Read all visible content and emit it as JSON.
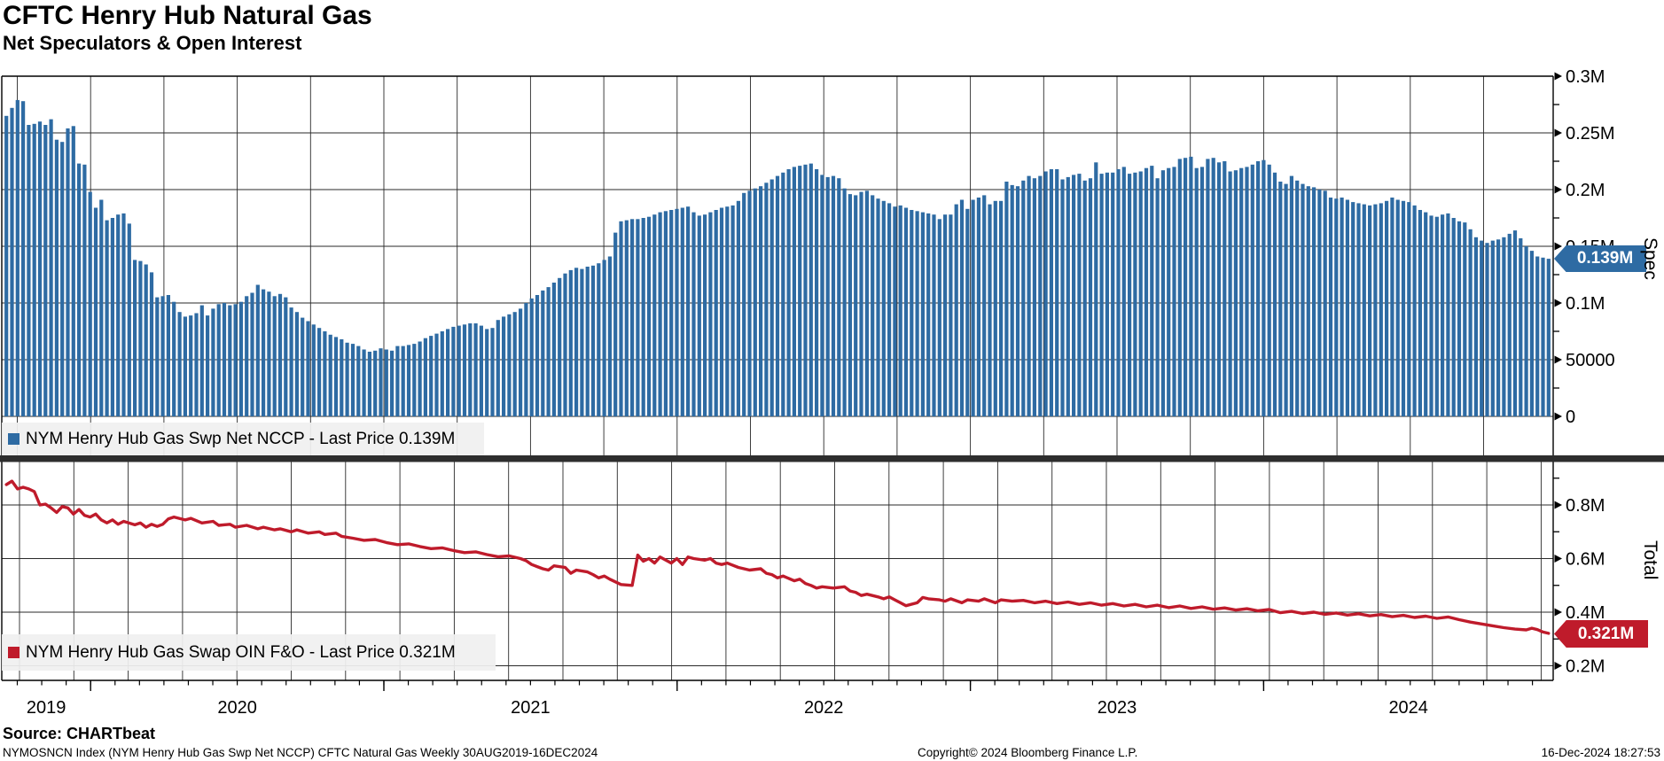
{
  "header": {
    "title": "CFTC Henry Hub Natural Gas",
    "subtitle": "Net Speculators & Open Interest"
  },
  "footer": {
    "source": "Source: CHARTbeat",
    "index_line": "NYMOSNCN Index (NYM Henry Hub Gas Swp Net NCCP) CFTC Natural Gas  Weekly 30AUG2019-16DEC2024",
    "copyright": "Copyright© 2024 Bloomberg Finance L.P.",
    "datetime": "16-Dec-2024 18:27:53"
  },
  "colors": {
    "bar_blue": "#2e6ba3",
    "line_red": "#bf1b2b",
    "grid": "#2a2a2a",
    "axis": "#000000",
    "separator": "#2e2e2e",
    "legend_bg": "#f0f0f0",
    "tag_text": "#ffffff"
  },
  "chart_data": [
    {
      "type": "bar",
      "panel": "top",
      "name": "NYM Henry Hub Gas Swp Net NCCP",
      "legend": "NYM Henry Hub Gas Swp Net NCCP - Last Price 0.139M",
      "last_price": "0.139M",
      "axis_title": "Spec",
      "frequency": "Weekly",
      "date_range": "30AUG2019-16DEC2024",
      "unit": "contracts (M = million)",
      "ylim": [
        0,
        0.3
      ],
      "yticks": [
        {
          "label": "0",
          "v": 0
        },
        {
          "label": "50000",
          "v": 0.05
        },
        {
          "label": "0.1M",
          "v": 0.1
        },
        {
          "label": "0.15M",
          "v": 0.15
        },
        {
          "label": "0.2M",
          "v": 0.2
        },
        {
          "label": "0.25M",
          "v": 0.25
        },
        {
          "label": "0.3M",
          "v": 0.3
        }
      ],
      "values": [
        0.265,
        0.272,
        0.279,
        0.278,
        0.257,
        0.258,
        0.26,
        0.257,
        0.262,
        0.244,
        0.242,
        0.254,
        0.256,
        0.223,
        0.222,
        0.198,
        0.184,
        0.191,
        0.173,
        0.175,
        0.178,
        0.179,
        0.17,
        0.138,
        0.137,
        0.134,
        0.127,
        0.105,
        0.106,
        0.107,
        0.101,
        0.092,
        0.088,
        0.089,
        0.091,
        0.098,
        0.089,
        0.095,
        0.099,
        0.1,
        0.098,
        0.099,
        0.101,
        0.106,
        0.109,
        0.116,
        0.112,
        0.11,
        0.106,
        0.108,
        0.105,
        0.096,
        0.092,
        0.087,
        0.084,
        0.081,
        0.078,
        0.075,
        0.072,
        0.07,
        0.068,
        0.065,
        0.064,
        0.062,
        0.059,
        0.057,
        0.058,
        0.06,
        0.059,
        0.058,
        0.062,
        0.062,
        0.063,
        0.064,
        0.066,
        0.069,
        0.071,
        0.073,
        0.075,
        0.077,
        0.079,
        0.08,
        0.081,
        0.082,
        0.082,
        0.08,
        0.077,
        0.078,
        0.085,
        0.088,
        0.09,
        0.092,
        0.095,
        0.1,
        0.104,
        0.107,
        0.111,
        0.114,
        0.118,
        0.122,
        0.126,
        0.129,
        0.131,
        0.13,
        0.132,
        0.133,
        0.135,
        0.138,
        0.141,
        0.162,
        0.172,
        0.173,
        0.174,
        0.174,
        0.175,
        0.176,
        0.178,
        0.18,
        0.181,
        0.182,
        0.183,
        0.184,
        0.185,
        0.18,
        0.177,
        0.178,
        0.18,
        0.182,
        0.184,
        0.185,
        0.186,
        0.19,
        0.197,
        0.199,
        0.201,
        0.203,
        0.206,
        0.209,
        0.212,
        0.215,
        0.218,
        0.22,
        0.221,
        0.222,
        0.223,
        0.218,
        0.213,
        0.211,
        0.212,
        0.21,
        0.201,
        0.196,
        0.195,
        0.198,
        0.199,
        0.195,
        0.192,
        0.19,
        0.188,
        0.185,
        0.186,
        0.184,
        0.182,
        0.181,
        0.18,
        0.179,
        0.178,
        0.174,
        0.178,
        0.178,
        0.187,
        0.191,
        0.183,
        0.191,
        0.193,
        0.195,
        0.187,
        0.19,
        0.19,
        0.207,
        0.204,
        0.203,
        0.208,
        0.212,
        0.21,
        0.212,
        0.216,
        0.218,
        0.218,
        0.209,
        0.211,
        0.213,
        0.214,
        0.208,
        0.21,
        0.224,
        0.214,
        0.215,
        0.215,
        0.218,
        0.22,
        0.214,
        0.215,
        0.216,
        0.219,
        0.221,
        0.21,
        0.217,
        0.219,
        0.22,
        0.227,
        0.228,
        0.229,
        0.219,
        0.22,
        0.227,
        0.228,
        0.224,
        0.225,
        0.216,
        0.217,
        0.219,
        0.22,
        0.222,
        0.225,
        0.226,
        0.222,
        0.215,
        0.207,
        0.205,
        0.212,
        0.208,
        0.205,
        0.203,
        0.202,
        0.2,
        0.199,
        0.193,
        0.192,
        0.193,
        0.191,
        0.189,
        0.188,
        0.187,
        0.186,
        0.187,
        0.188,
        0.19,
        0.193,
        0.191,
        0.19,
        0.189,
        0.186,
        0.182,
        0.18,
        0.177,
        0.176,
        0.178,
        0.179,
        0.175,
        0.172,
        0.171,
        0.165,
        0.158,
        0.155,
        0.153,
        0.155,
        0.156,
        0.158,
        0.161,
        0.164,
        0.157,
        0.15,
        0.146,
        0.141,
        0.14,
        0.139
      ]
    },
    {
      "type": "line",
      "panel": "bottom",
      "name": "NYM Henry Hub Gas Swap OIN F&O",
      "legend": "NYM Henry Hub Gas Swap OIN F&O - Last Price 0.321M",
      "last_price": "0.321M",
      "axis_title": "Total",
      "frequency": "Weekly",
      "date_range": "30AUG2019-16DEC2024",
      "unit": "contracts (M = million)",
      "ylim": [
        0.15,
        0.96
      ],
      "yticks": [
        {
          "label": "0.2M",
          "v": 0.2
        },
        {
          "label": "0.4M",
          "v": 0.4
        },
        {
          "label": "0.6M",
          "v": 0.6
        },
        {
          "label": "0.8M",
          "v": 0.8
        }
      ],
      "points": [
        [
          0,
          0.876
        ],
        [
          1,
          0.889
        ],
        [
          2,
          0.86
        ],
        [
          3,
          0.866
        ],
        [
          4,
          0.86
        ],
        [
          5,
          0.85
        ],
        [
          6,
          0.8
        ],
        [
          7,
          0.803
        ],
        [
          8,
          0.789
        ],
        [
          9,
          0.772
        ],
        [
          10,
          0.794
        ],
        [
          11,
          0.789
        ],
        [
          12,
          0.766
        ],
        [
          13,
          0.783
        ],
        [
          14,
          0.761
        ],
        [
          15,
          0.755
        ],
        [
          16,
          0.766
        ],
        [
          17,
          0.744
        ],
        [
          18,
          0.733
        ],
        [
          19,
          0.744
        ],
        [
          20,
          0.728
        ],
        [
          21,
          0.739
        ],
        [
          23,
          0.726
        ],
        [
          24,
          0.733
        ],
        [
          25,
          0.717
        ],
        [
          26,
          0.728
        ],
        [
          27,
          0.72
        ],
        [
          28,
          0.728
        ],
        [
          29,
          0.748
        ],
        [
          30,
          0.755
        ],
        [
          32,
          0.744
        ],
        [
          33,
          0.75
        ],
        [
          35,
          0.733
        ],
        [
          37,
          0.739
        ],
        [
          38,
          0.724
        ],
        [
          40,
          0.728
        ],
        [
          41,
          0.717
        ],
        [
          43,
          0.724
        ],
        [
          45,
          0.711
        ],
        [
          46,
          0.717
        ],
        [
          48,
          0.707
        ],
        [
          49,
          0.711
        ],
        [
          51,
          0.7
        ],
        [
          52,
          0.707
        ],
        [
          54,
          0.695
        ],
        [
          56,
          0.7
        ],
        [
          57,
          0.69
        ],
        [
          59,
          0.695
        ],
        [
          60,
          0.683
        ],
        [
          62,
          0.676
        ],
        [
          64,
          0.668
        ],
        [
          66,
          0.671
        ],
        [
          68,
          0.66
        ],
        [
          70,
          0.652
        ],
        [
          72,
          0.655
        ],
        [
          74,
          0.645
        ],
        [
          76,
          0.637
        ],
        [
          78,
          0.64
        ],
        [
          80,
          0.63
        ],
        [
          82,
          0.622
        ],
        [
          84,
          0.625
        ],
        [
          86,
          0.615
        ],
        [
          88,
          0.607
        ],
        [
          90,
          0.61
        ],
        [
          92,
          0.6
        ],
        [
          93,
          0.592
        ],
        [
          94,
          0.578
        ],
        [
          95,
          0.57
        ],
        [
          96,
          0.562
        ],
        [
          97,
          0.557
        ],
        [
          98,
          0.573
        ],
        [
          100,
          0.567
        ],
        [
          101,
          0.545
        ],
        [
          102,
          0.557
        ],
        [
          104,
          0.55
        ],
        [
          105,
          0.54
        ],
        [
          106,
          0.528
        ],
        [
          107,
          0.535
        ],
        [
          108,
          0.523
        ],
        [
          110,
          0.503
        ],
        [
          112,
          0.5
        ],
        [
          113,
          0.613
        ],
        [
          114,
          0.59
        ],
        [
          115,
          0.6
        ],
        [
          116,
          0.583
        ],
        [
          117,
          0.606
        ],
        [
          119,
          0.583
        ],
        [
          120,
          0.6
        ],
        [
          121,
          0.578
        ],
        [
          122,
          0.606
        ],
        [
          123,
          0.6
        ],
        [
          125,
          0.594
        ],
        [
          126,
          0.6
        ],
        [
          127,
          0.583
        ],
        [
          128,
          0.578
        ],
        [
          129,
          0.583
        ],
        [
          131,
          0.567
        ],
        [
          132,
          0.562
        ],
        [
          133,
          0.557
        ],
        [
          135,
          0.562
        ],
        [
          136,
          0.545
        ],
        [
          137,
          0.54
        ],
        [
          138,
          0.528
        ],
        [
          139,
          0.535
        ],
        [
          141,
          0.517
        ],
        [
          142,
          0.523
        ],
        [
          143,
          0.507
        ],
        [
          144,
          0.5
        ],
        [
          145,
          0.49
        ],
        [
          146,
          0.495
        ],
        [
          148,
          0.49
        ],
        [
          150,
          0.495
        ],
        [
          151,
          0.479
        ],
        [
          152,
          0.474
        ],
        [
          153,
          0.462
        ],
        [
          154,
          0.467
        ],
        [
          156,
          0.457
        ],
        [
          157,
          0.45
        ],
        [
          158,
          0.457
        ],
        [
          159,
          0.446
        ],
        [
          160,
          0.435
        ],
        [
          161,
          0.424
        ],
        [
          163,
          0.435
        ],
        [
          164,
          0.455
        ],
        [
          165,
          0.45
        ],
        [
          167,
          0.446
        ],
        [
          168,
          0.441
        ],
        [
          169,
          0.45
        ],
        [
          171,
          0.435
        ],
        [
          172,
          0.446
        ],
        [
          174,
          0.441
        ],
        [
          175,
          0.45
        ],
        [
          177,
          0.435
        ],
        [
          178,
          0.446
        ],
        [
          180,
          0.441
        ],
        [
          182,
          0.444
        ],
        [
          184,
          0.435
        ],
        [
          186,
          0.441
        ],
        [
          188,
          0.432
        ],
        [
          190,
          0.438
        ],
        [
          192,
          0.429
        ],
        [
          194,
          0.435
        ],
        [
          196,
          0.426
        ],
        [
          198,
          0.432
        ],
        [
          200,
          0.423
        ],
        [
          202,
          0.429
        ],
        [
          204,
          0.42
        ],
        [
          206,
          0.426
        ],
        [
          208,
          0.417
        ],
        [
          210,
          0.423
        ],
        [
          212,
          0.414
        ],
        [
          214,
          0.42
        ],
        [
          216,
          0.411
        ],
        [
          218,
          0.416
        ],
        [
          220,
          0.408
        ],
        [
          222,
          0.413
        ],
        [
          224,
          0.405
        ],
        [
          226,
          0.41
        ],
        [
          228,
          0.398
        ],
        [
          230,
          0.403
        ],
        [
          232,
          0.395
        ],
        [
          234,
          0.4
        ],
        [
          236,
          0.392
        ],
        [
          238,
          0.397
        ],
        [
          240,
          0.389
        ],
        [
          242,
          0.394
        ],
        [
          244,
          0.386
        ],
        [
          246,
          0.391
        ],
        [
          248,
          0.383
        ],
        [
          250,
          0.388
        ],
        [
          252,
          0.38
        ],
        [
          254,
          0.385
        ],
        [
          256,
          0.377
        ],
        [
          258,
          0.382
        ],
        [
          260,
          0.372
        ],
        [
          262,
          0.363
        ],
        [
          264,
          0.356
        ],
        [
          266,
          0.349
        ],
        [
          268,
          0.342
        ],
        [
          270,
          0.337
        ],
        [
          272,
          0.334
        ],
        [
          273,
          0.34
        ],
        [
          274,
          0.335
        ],
        [
          275,
          0.326
        ],
        [
          276,
          0.321
        ]
      ]
    }
  ],
  "x_axis": {
    "year_labels": [
      "2019",
      "2020",
      "2021",
      "2022",
      "2023",
      "2024"
    ]
  }
}
